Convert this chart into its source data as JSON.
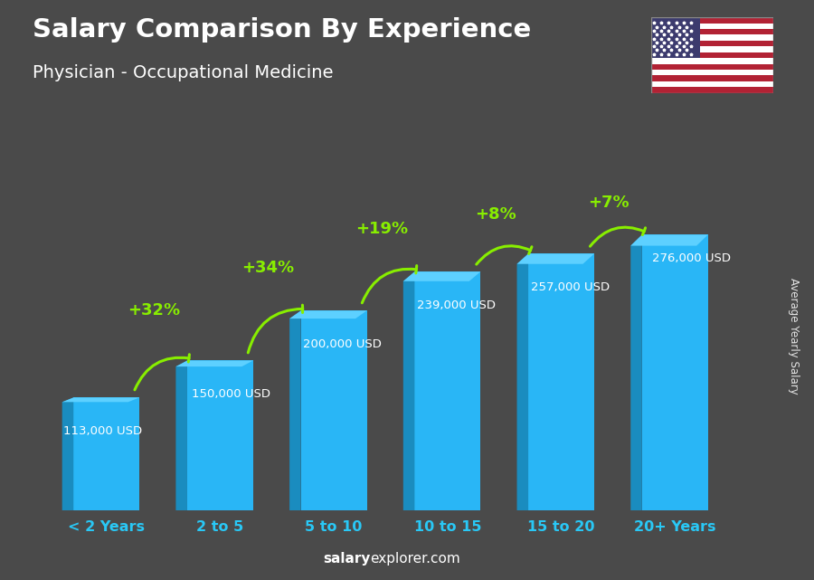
{
  "title": "Salary Comparison By Experience",
  "subtitle": "Physician - Occupational Medicine",
  "categories": [
    "< 2 Years",
    "2 to 5",
    "5 to 10",
    "10 to 15",
    "15 to 20",
    "20+ Years"
  ],
  "values": [
    113000,
    150000,
    200000,
    239000,
    257000,
    276000
  ],
  "labels": [
    "113,000 USD",
    "150,000 USD",
    "200,000 USD",
    "239,000 USD",
    "257,000 USD",
    "276,000 USD"
  ],
  "pct_changes": [
    "+32%",
    "+34%",
    "+19%",
    "+8%",
    "+7%"
  ],
  "bar_color_face": "#29b6f6",
  "bar_color_left": "#1a8cbf",
  "bar_color_top": "#5dd0ff",
  "bg_color": "#4a4a4a",
  "title_color": "#ffffff",
  "label_color": "#ffffff",
  "category_color": "#29c8f6",
  "pct_color": "#88ee00",
  "ylabel": "Average Yearly Salary",
  "footer_bold": "salary",
  "footer_normal": "explorer.com",
  "ylim_max": 360000,
  "flag_colors_stripes": [
    "#B22234",
    "#FFFFFF"
  ],
  "flag_color_canton": "#3C3B6E",
  "flag_star_color": "#FFFFFF"
}
